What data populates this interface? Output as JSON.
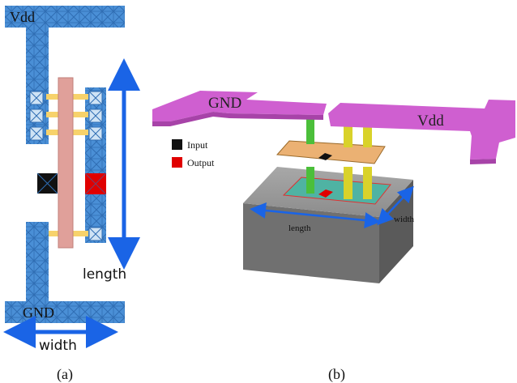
{
  "panel_a": {
    "vdd_label": "Vdd",
    "gnd_label": "GND",
    "length_label": "length",
    "width_label": "width",
    "caption": "(a)"
  },
  "panel_b": {
    "gnd_label": "GND",
    "vdd_label": "Vdd",
    "legend": {
      "input_label": "Input",
      "output_label": "Output"
    },
    "length_label": "length",
    "width_label": "width",
    "caption": "(b)"
  },
  "colors": {
    "metal_blue": "#4a8fd6",
    "poly_pink": "#e0a09a",
    "gate_yellow": "#f7d26b",
    "input_black": "#111111",
    "output_red": "#e00000",
    "arrow_blue": "#1a64e6",
    "rail_magenta": "#cf5fd0",
    "via_green": "#4bbf3a",
    "via_yellow": "#d9d22a",
    "plate_orange": "#e8a35a",
    "block_gray": "#7d7d7d"
  }
}
